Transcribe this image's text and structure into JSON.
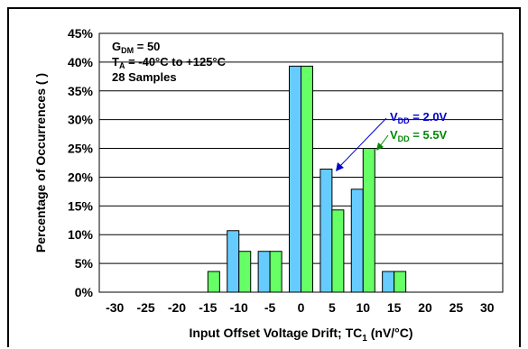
{
  "chart_data": {
    "type": "bar",
    "xlabel_main": "Input Offset Voltage Drift; TC",
    "xlabel_sub": "1",
    "xlabel_unit": " (nV/°C)",
    "ylabel": "Percentage of Occurrences ( )",
    "ylim": [
      0,
      45
    ],
    "yticks": [
      "0%",
      "5%",
      "10%",
      "15%",
      "20%",
      "25%",
      "30%",
      "35%",
      "40%",
      "45%"
    ],
    "categories": [
      "-30",
      "-25",
      "-20",
      "-15",
      "-10",
      "-5",
      "0",
      "5",
      "10",
      "15",
      "20",
      "25",
      "30"
    ],
    "grid": "horizontal",
    "series": [
      {
        "name": "V_DD = 2.0V",
        "label_main": "V",
        "label_sub": "DD",
        "label_value": " = 2.0V",
        "color": "#66ccff",
        "label_color": "#0000cc",
        "values": [
          0,
          0,
          0,
          0,
          10.7,
          7.1,
          39.3,
          21.4,
          17.9,
          3.6,
          0,
          0,
          0
        ]
      },
      {
        "name": "V_DD = 5.5V",
        "label_main": "V",
        "label_sub": "DD",
        "label_value": " = 5.5V",
        "color": "#66ff66",
        "label_color": "#008800",
        "values": [
          0,
          0,
          0,
          3.6,
          7.1,
          7.1,
          39.3,
          14.3,
          25.0,
          3.6,
          0,
          0,
          0
        ]
      }
    ],
    "annotations": [
      {
        "main": "G",
        "sub": "DM",
        "rest": " = 50"
      },
      {
        "main": "T",
        "sub": "A",
        "rest": " = -40°C to +125°C"
      },
      {
        "main": "28 Samples",
        "sub": "",
        "rest": ""
      }
    ]
  }
}
